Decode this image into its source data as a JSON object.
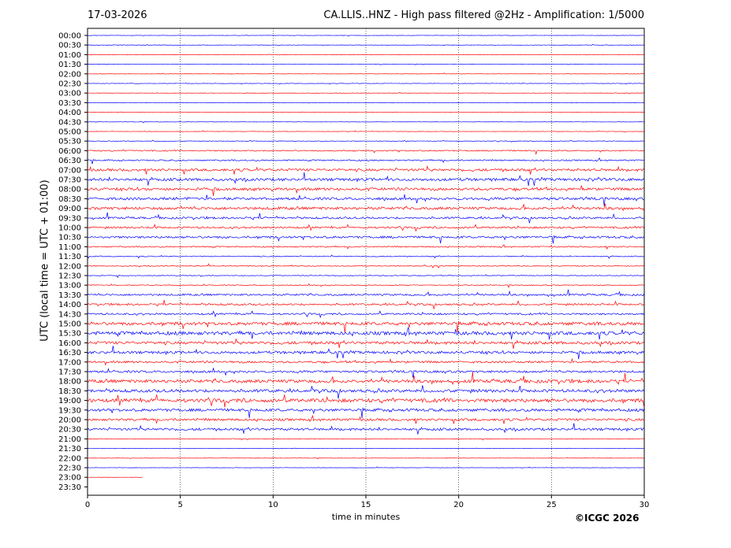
{
  "header": {
    "date": "17-03-2026",
    "title": "CA.LLIS..HNZ - High pass filtered @2Hz - Amplification: 1/5000"
  },
  "footer": {
    "copyright": "©ICGC 2026"
  },
  "colors": {
    "trace_a": "#ff0000",
    "trace_b": "#0000ff",
    "axis": "#000000",
    "grid": "#000000"
  },
  "chart_data": {
    "type": "line",
    "subtype": "helicorder",
    "title": "CA.LLIS..HNZ - High pass filtered @2Hz - Amplification: 1/5000",
    "xlabel": "time in minutes",
    "ylabel": "UTC (local time = UTC + 01:00)",
    "xlim": [
      0,
      30
    ],
    "x_ticks": [
      0,
      5,
      10,
      15,
      20,
      25,
      30
    ],
    "grid": "vertical dotted lines at 5-minute ticks",
    "row_labels": [
      "00:00",
      "00:30",
      "01:00",
      "01:30",
      "02:00",
      "02:30",
      "03:00",
      "03:30",
      "04:00",
      "04:30",
      "05:00",
      "05:30",
      "06:00",
      "06:30",
      "07:00",
      "07:30",
      "08:00",
      "08:30",
      "09:00",
      "09:30",
      "10:00",
      "10:30",
      "11:00",
      "11:30",
      "12:00",
      "12:30",
      "13:00",
      "13:30",
      "14:00",
      "14:30",
      "15:00",
      "15:30",
      "16:00",
      "16:30",
      "17:00",
      "17:30",
      "18:00",
      "18:30",
      "19:00",
      "19:30",
      "20:00",
      "20:30",
      "21:00",
      "21:30",
      "22:00",
      "22:30",
      "23:00",
      "23:30"
    ],
    "row_colors_cycle": [
      "blue",
      "blue",
      "red",
      "blue",
      "red",
      "blue",
      "red",
      "blue",
      "red",
      "blue",
      "red",
      "blue",
      "red",
      "blue",
      "red",
      "blue",
      "red",
      "blue",
      "red",
      "blue",
      "red",
      "blue",
      "red",
      "blue",
      "red",
      "blue",
      "red",
      "blue",
      "red",
      "blue",
      "red",
      "blue",
      "red",
      "blue",
      "red",
      "blue",
      "red",
      "blue",
      "red",
      "blue",
      "red",
      "blue",
      "red",
      "blue",
      "red",
      "blue",
      "red",
      "blue"
    ],
    "row_activity": [
      0.3,
      0.4,
      0.3,
      0.3,
      0.3,
      0.4,
      0.3,
      0.2,
      0.3,
      0.3,
      0.3,
      0.5,
      1.2,
      1.3,
      2.5,
      2.8,
      2.6,
      2.6,
      2.7,
      2.0,
      1.8,
      2.2,
      1.2,
      0.9,
      0.8,
      0.7,
      0.8,
      1.9,
      1.8,
      1.8,
      3.2,
      3.5,
      2.8,
      2.6,
      2.0,
      2.2,
      3.3,
      3.0,
      3.6,
      2.8,
      2.3,
      2.4,
      0.4,
      0.3,
      0.3,
      0.3,
      0.3,
      0.2
    ],
    "row_end_minute": [
      30,
      30,
      30,
      30,
      30,
      30,
      30,
      30,
      30,
      30,
      30,
      30,
      30,
      30,
      30,
      30,
      30,
      30,
      30,
      30,
      30,
      30,
      30,
      30,
      30,
      30,
      30,
      30,
      30,
      30,
      30,
      30,
      30,
      30,
      30,
      30,
      30,
      30,
      30,
      30,
      30,
      30,
      30,
      30,
      30,
      30,
      3,
      0
    ],
    "notes_from_image": "seismic helicorder traces; busier during daytime hours"
  }
}
